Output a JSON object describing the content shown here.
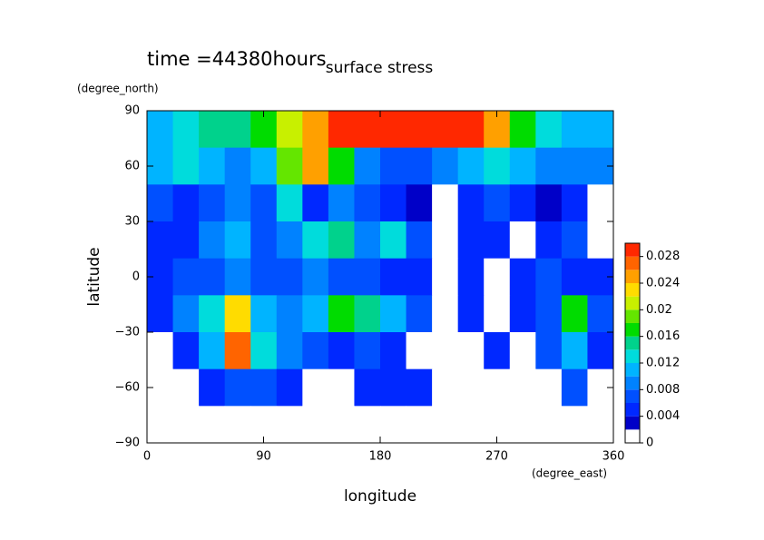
{
  "chart_data": {
    "type": "contour",
    "title": "surface stress",
    "subtitle": "time =44380hours",
    "x_label": "longitude",
    "x_unit": "(degree_east)",
    "y_label": "latitude",
    "y_unit": "(degree_north)",
    "xlim": [
      0,
      360
    ],
    "ylim": [
      -90,
      90
    ],
    "xticks": [
      0,
      90,
      180,
      270,
      360
    ],
    "yticks": [
      {
        "value": -90,
        "label": "−90"
      },
      {
        "value": -60,
        "label": "−60"
      },
      {
        "value": -30,
        "label": "−30"
      },
      0,
      30,
      60,
      90
    ],
    "lon": [
      10,
      30,
      50,
      70,
      90,
      110,
      130,
      150,
      170,
      190,
      210,
      230,
      250,
      270,
      290,
      310,
      330,
      350
    ],
    "lat": [
      80,
      60,
      40,
      20,
      0,
      -20,
      -40,
      -60,
      -80
    ],
    "z": [
      [
        0.01,
        0.012,
        0.014,
        0.014,
        0.016,
        0.02,
        0.024,
        0.028,
        0.03,
        0.03,
        0.03,
        0.03,
        0.028,
        0.024,
        0.016,
        0.012,
        0.01,
        0.01
      ],
      [
        0.01,
        0.012,
        0.01,
        0.008,
        0.01,
        0.018,
        0.024,
        0.016,
        0.008,
        0.006,
        0.006,
        0.008,
        0.01,
        0.012,
        0.01,
        0.008,
        0.008,
        0.008
      ],
      [
        0.006,
        0.004,
        0.006,
        0.008,
        0.006,
        0.012,
        0.004,
        0.008,
        0.006,
        0.004,
        0.002,
        0.001,
        0.004,
        0.006,
        0.004,
        0.002,
        0.004,
        0.001
      ],
      [
        0.004,
        0.004,
        0.008,
        0.01,
        0.006,
        0.008,
        0.012,
        0.014,
        0.008,
        0.012,
        0.006,
        0.001,
        0.004,
        0.004,
        0.001,
        0.004,
        0.006,
        0.001
      ],
      [
        0.004,
        0.006,
        0.006,
        0.008,
        0.006,
        0.006,
        0.008,
        0.006,
        0.006,
        0.004,
        0.004,
        0.001,
        0.004,
        0.001,
        0.004,
        0.006,
        0.004,
        0.004
      ],
      [
        0.004,
        0.008,
        0.012,
        0.022,
        0.01,
        0.008,
        0.01,
        0.016,
        0.014,
        0.01,
        0.006,
        0.001,
        0.004,
        0.001,
        0.004,
        0.006,
        0.016,
        0.006
      ],
      [
        0.001,
        0.004,
        0.01,
        0.026,
        0.012,
        0.008,
        0.006,
        0.004,
        0.006,
        0.004,
        0.001,
        0.001,
        0.001,
        0.004,
        0.001,
        0.006,
        0.01,
        0.004
      ],
      [
        0.001,
        0.001,
        0.004,
        0.006,
        0.006,
        0.004,
        0.001,
        0.001,
        0.004,
        0.004,
        0.004,
        0.001,
        0.001,
        0.001,
        0.001,
        0.001,
        0.006,
        0.001
      ],
      [
        0.001,
        0.001,
        0.001,
        0.001,
        0.001,
        0.001,
        0.001,
        0.001,
        0.001,
        0.001,
        0.001,
        0.001,
        0.001,
        0.001,
        0.001,
        0.001,
        0.001,
        0.001
      ]
    ],
    "levels": [
      0,
      0.002,
      0.004,
      0.006,
      0.008,
      0.01,
      0.012,
      0.014,
      0.016,
      0.018,
      0.02,
      0.022,
      0.024,
      0.026,
      0.028,
      0.03
    ],
    "colors": [
      "#ffffff",
      "#0000c8",
      "#0028ff",
      "#0050ff",
      "#0082ff",
      "#00b4ff",
      "#00dcdc",
      "#00d28c",
      "#00dc00",
      "#64e600",
      "#c8f000",
      "#ffdc00",
      "#ffa000",
      "#ff6400",
      "#ff2800"
    ],
    "colorbar_ticks": [
      0,
      0.004,
      0.008,
      0.012,
      0.016,
      0.02,
      0.024,
      0.028
    ]
  }
}
